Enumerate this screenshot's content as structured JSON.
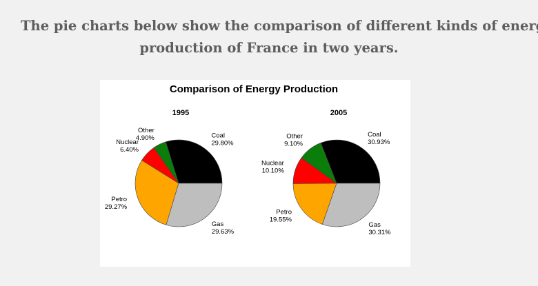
{
  "heading": {
    "line1": "The pie charts below show the comparison of different kinds of energy",
    "line2": "production of France in two years."
  },
  "chart_data": [
    {
      "type": "pie",
      "title": "Comparison of Energy Production",
      "subtitle": "1995",
      "slices": [
        {
          "label": "Coal",
          "value": 29.8,
          "value_text": "29.80%",
          "color": "#000000"
        },
        {
          "label": "Other",
          "value": 4.9,
          "value_text": "4.90%",
          "color": "#0a7d0a"
        },
        {
          "label": "Nuclear",
          "value": 6.4,
          "value_text": "6.40%",
          "color": "#ff0000"
        },
        {
          "label": "Petro",
          "value": 29.27,
          "value_text": "29.27%",
          "color": "#ffa500"
        },
        {
          "label": "Gas",
          "value": 29.63,
          "value_text": "29.63%",
          "color": "#bebebe"
        }
      ]
    },
    {
      "type": "pie",
      "title": "Comparison of Energy Production",
      "subtitle": "2005",
      "slices": [
        {
          "label": "Coal",
          "value": 30.93,
          "value_text": "30.93%",
          "color": "#000000"
        },
        {
          "label": "Other",
          "value": 9.1,
          "value_text": "9.10%",
          "color": "#0a7d0a"
        },
        {
          "label": "Nuclear",
          "value": 10.1,
          "value_text": "10.10%",
          "color": "#ff0000"
        },
        {
          "label": "Petro",
          "value": 19.55,
          "value_text": "19.55%",
          "color": "#ffa500"
        },
        {
          "label": "Gas",
          "value": 30.31,
          "value_text": "30.31%",
          "color": "#bebebe"
        }
      ]
    }
  ]
}
